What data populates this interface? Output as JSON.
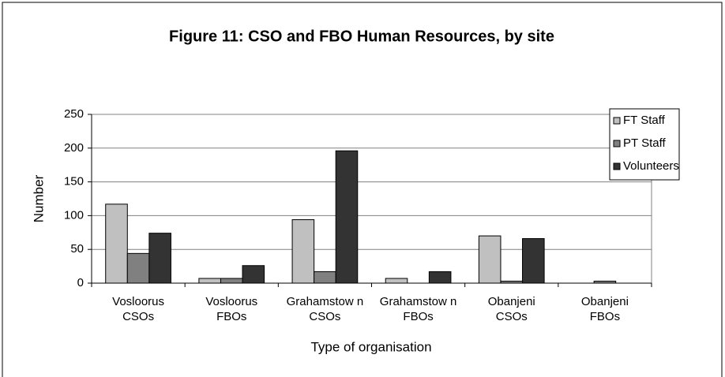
{
  "chart_data": {
    "type": "bar",
    "title": "Figure 11: CSO and FBO Human Resources, by site",
    "x_label": "Type of organisation",
    "y_label": "Number",
    "categories": [
      "Vosloorus CSOs",
      "Vosloorus FBOs",
      "Grahamstow n CSOs",
      "Grahamstow n FBOs",
      "Obanjeni CSOs",
      "Obanjeni FBOs"
    ],
    "series": [
      {
        "name": "FT Staff",
        "color": "#c0c0c0",
        "values": [
          117,
          7,
          94,
          7,
          70,
          0
        ]
      },
      {
        "name": "PT Staff",
        "color": "#808080",
        "values": [
          44,
          7,
          17,
          0,
          3,
          3
        ]
      },
      {
        "name": "Volunteers",
        "color": "#333333",
        "values": [
          74,
          26,
          196,
          17,
          66,
          0
        ]
      }
    ],
    "ylim": [
      0,
      250
    ],
    "yticks": [
      0,
      50,
      100,
      150,
      200,
      250
    ],
    "grid": true,
    "legend": "right"
  }
}
